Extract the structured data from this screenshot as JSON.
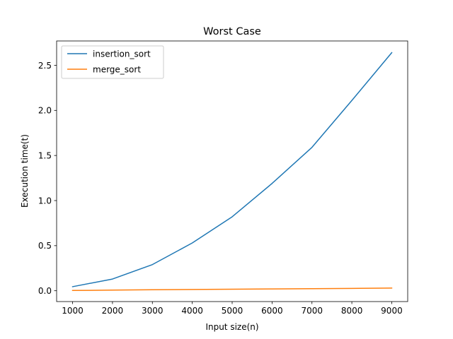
{
  "chart_data": {
    "type": "line",
    "title": "Worst Case",
    "xlabel": "Input size(n)",
    "ylabel": "Execution time(t)",
    "x": [
      1000,
      2000,
      3000,
      4000,
      5000,
      6000,
      7000,
      8000,
      9000
    ],
    "xlim": [
      600,
      9400
    ],
    "ylim": [
      -0.12,
      2.77
    ],
    "xticks": [
      1000,
      2000,
      3000,
      4000,
      5000,
      6000,
      7000,
      8000,
      9000
    ],
    "yticks": [
      0.0,
      0.5,
      1.0,
      1.5,
      2.0,
      2.5
    ],
    "ytick_labels": [
      "0.0",
      "0.5",
      "1.0",
      "1.5",
      "2.0",
      "2.5"
    ],
    "grid": false,
    "legend_position": "top-left",
    "series": [
      {
        "name": "insertion_sort",
        "color": "#1f77b4",
        "values": [
          0.045,
          0.13,
          0.29,
          0.53,
          0.82,
          1.19,
          1.59,
          2.11,
          2.64
        ]
      },
      {
        "name": "merge_sort",
        "color": "#ff7f0e",
        "values": [
          0.003,
          0.007,
          0.011,
          0.014,
          0.017,
          0.02,
          0.023,
          0.026,
          0.03
        ]
      }
    ]
  }
}
